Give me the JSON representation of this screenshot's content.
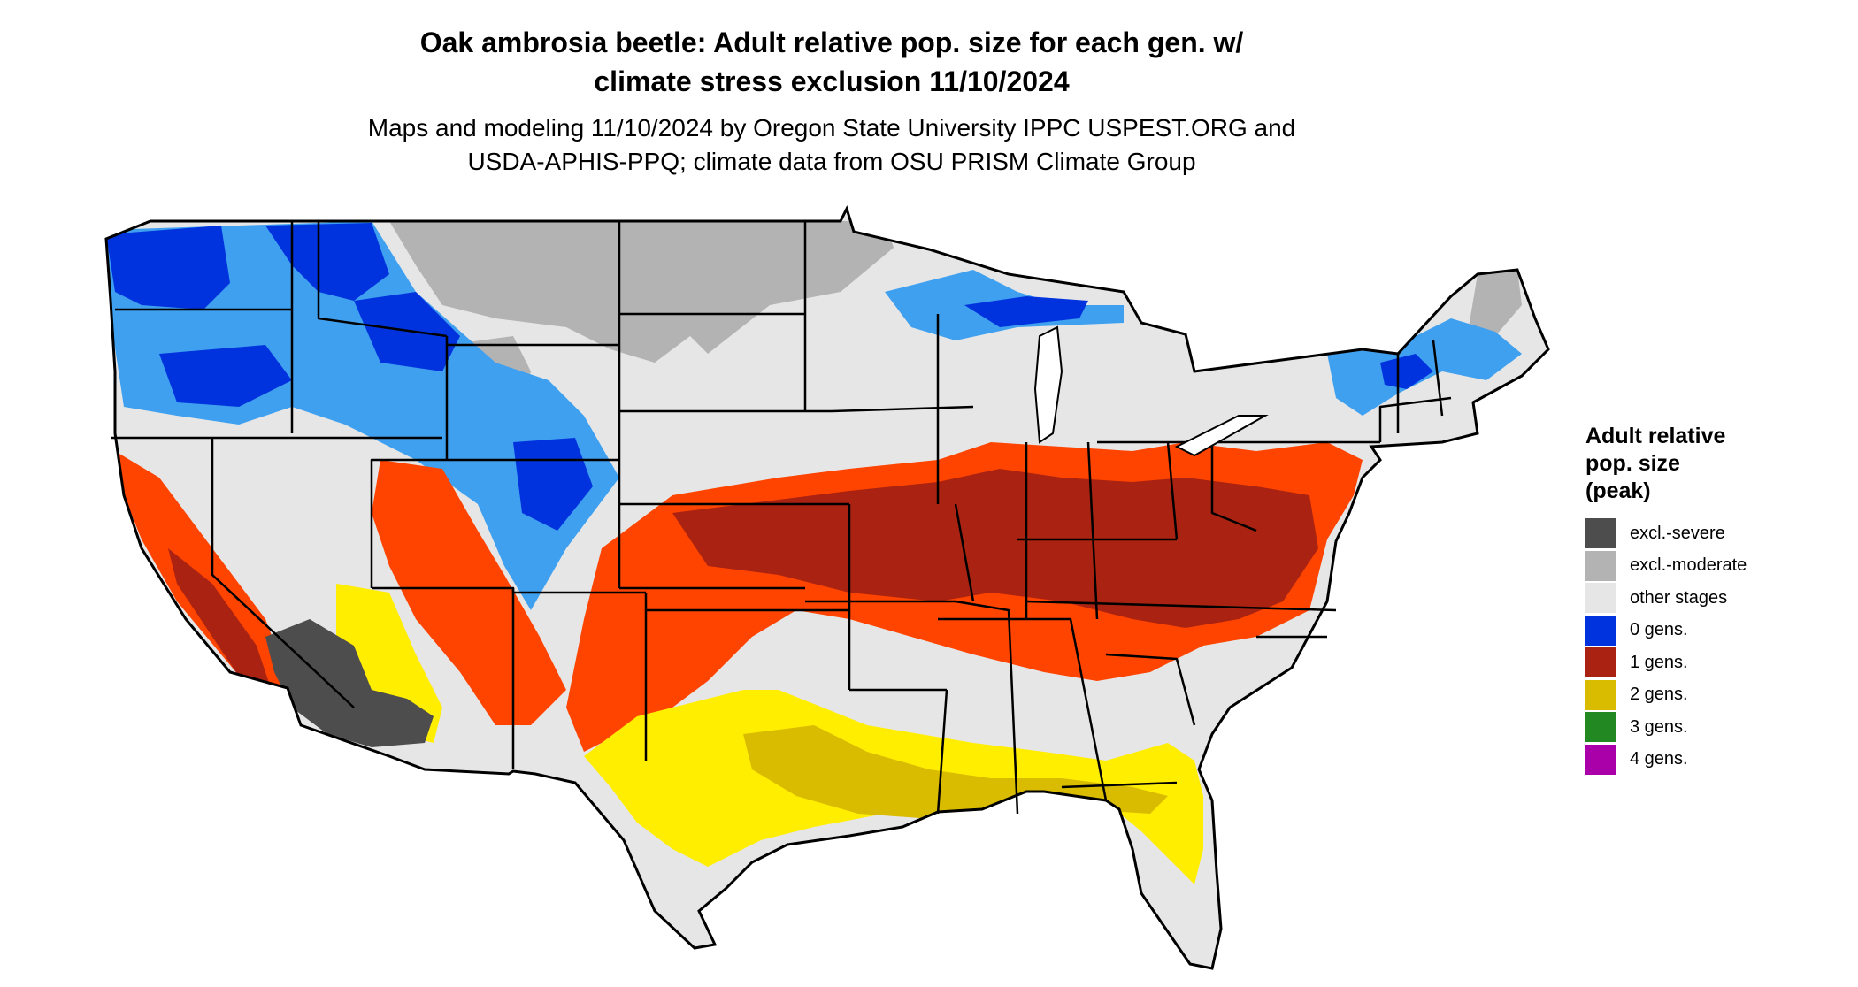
{
  "title": {
    "line1": "Oak ambrosia beetle: Adult relative pop. size for each gen. w/",
    "line2": "climate stress exclusion 11/10/2024"
  },
  "subtitle": {
    "line1": "Maps and modeling 11/10/2024 by Oregon State University IPPC USPEST.ORG and",
    "line2": "USDA-APHIS-PPQ; climate data from OSU PRISM Climate Group"
  },
  "legend": {
    "title_lines": [
      "Adult relative",
      "pop. size",
      "(peak)"
    ],
    "items": [
      {
        "label": "excl.-severe",
        "color": "#4d4d4d"
      },
      {
        "label": "excl.-moderate",
        "color": "#b3b3b3"
      },
      {
        "label": "other stages",
        "color": "#e6e6e6"
      },
      {
        "label": "0 gens.",
        "color": "#0033dd"
      },
      {
        "label": "1 gens.",
        "color": "#aa2211"
      },
      {
        "label": "2 gens.",
        "color": "#d9bb00"
      },
      {
        "label": "3 gens.",
        "color": "#228822"
      },
      {
        "label": "4 gens.",
        "color": "#aa00aa"
      }
    ]
  },
  "map": {
    "region": "Contiguous United States",
    "colors": {
      "background": "#e6e6e6",
      "excl_severe": "#4d4d4d",
      "excl_moderate": "#b3b3b3",
      "gen0": "#0033dd",
      "gen0_light": "#3fa0f0",
      "gen1": "#aa2211",
      "gen1_bright": "#ff4400",
      "gen2": "#d9bb00",
      "gen2_bright": "#ffee00",
      "gen3": "#228822",
      "borders": "#000000"
    }
  }
}
